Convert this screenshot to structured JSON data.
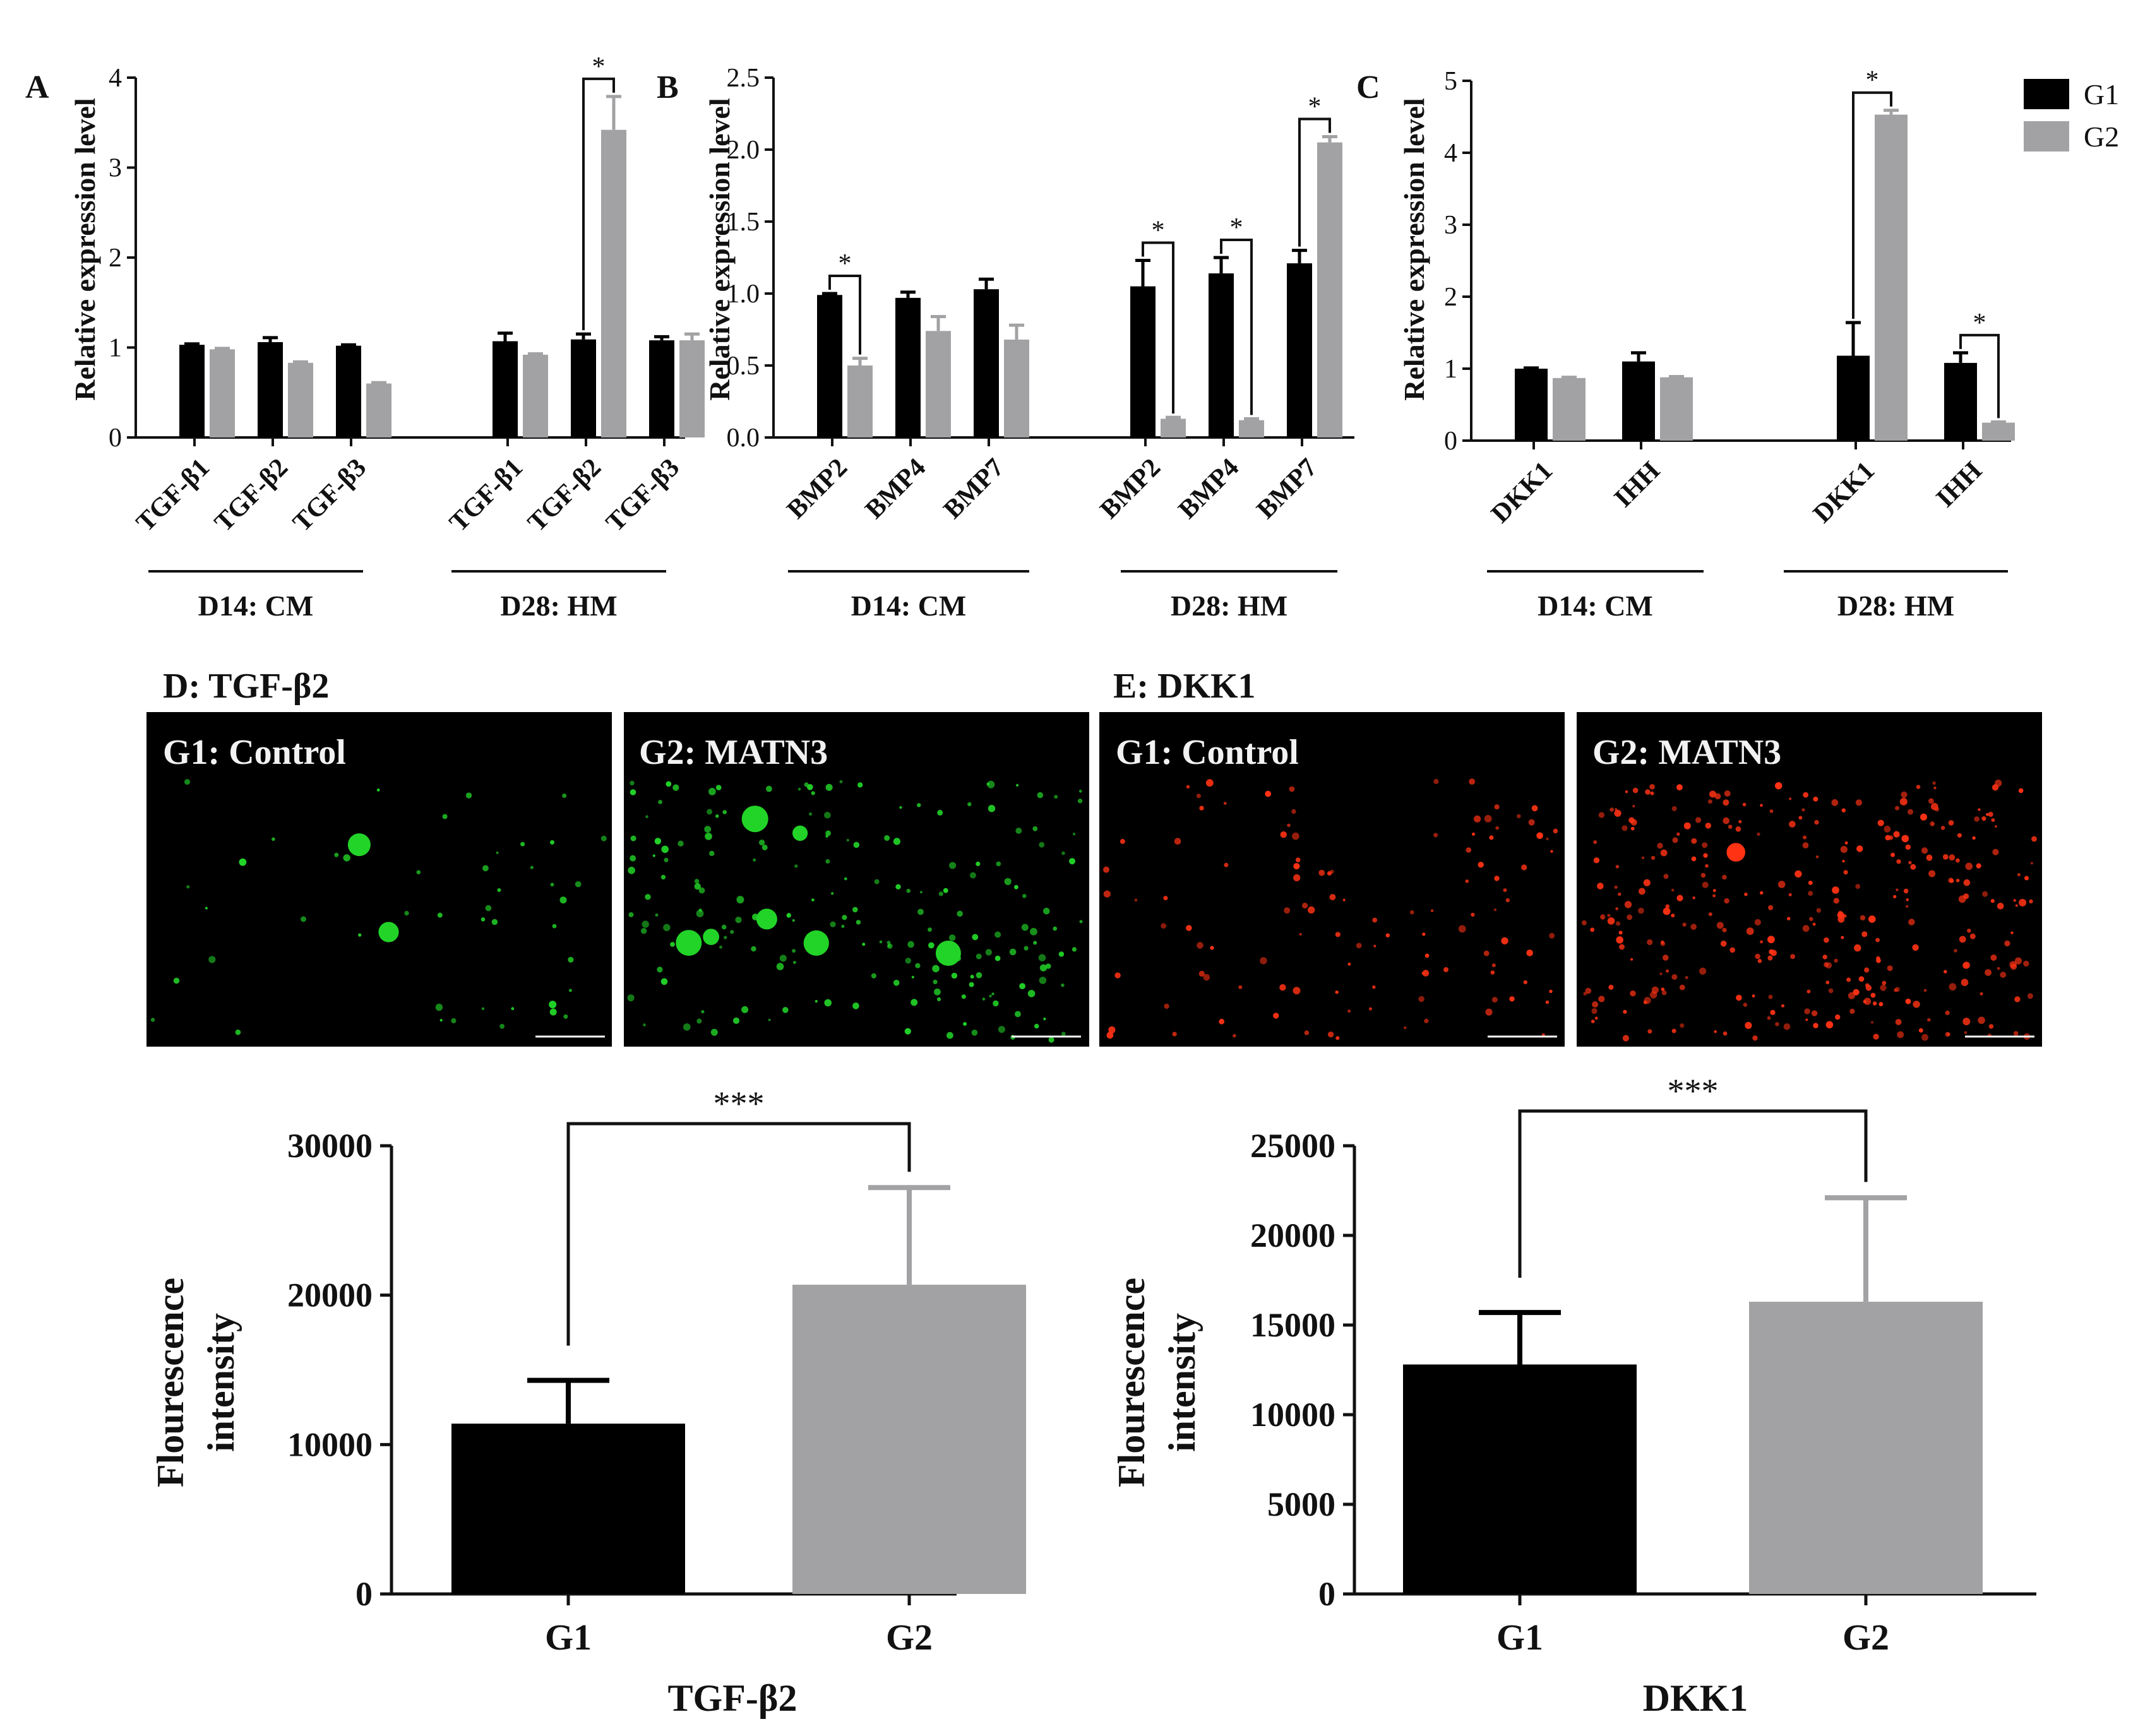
{
  "colors": {
    "G1": "#000000",
    "G2": "#a2a2a4",
    "axis": "#111111",
    "green_cells": "#22d428",
    "red_cells": "#ff3214"
  },
  "legend": {
    "items": [
      {
        "label": "G1",
        "color": "#000000"
      },
      {
        "label": "G2",
        "color": "#a2a2a4"
      }
    ],
    "placement": "top-right"
  },
  "chart_data": [
    {
      "panel": "A",
      "type": "bar",
      "ylabel": "Relative expression level",
      "ylim": [
        0,
        4
      ],
      "yticks": [
        "0",
        "1",
        "2",
        "3",
        "4"
      ],
      "categories": [
        "TGF-β1",
        "TGF-β2",
        "TGF-β3",
        "TGF-β1",
        "TGF-β2",
        "TGF-β3"
      ],
      "groups": [
        {
          "label": "D14: CM",
          "from": 0,
          "to": 2
        },
        {
          "label": "D28: HM",
          "from": 3,
          "to": 5
        }
      ],
      "series": [
        {
          "name": "G1",
          "values": [
            1.03,
            1.06,
            1.02,
            1.07,
            1.09,
            1.08
          ],
          "errors": [
            0.01,
            0.05,
            0.01,
            0.09,
            0.06,
            0.04
          ]
        },
        {
          "name": "G2",
          "values": [
            0.98,
            0.83,
            0.6,
            0.92,
            3.42,
            1.08
          ],
          "errors": [
            0.01,
            0.01,
            0.01,
            0.01,
            0.37,
            0.07
          ]
        }
      ],
      "significance": [
        {
          "category": 4,
          "label": "*"
        }
      ]
    },
    {
      "panel": "B",
      "type": "bar",
      "ylabel": "Relative expression level",
      "ylim": [
        0,
        2.5
      ],
      "yticks": [
        "0.0",
        "0.5",
        "1.0",
        "1.5",
        "2.0",
        "2.5"
      ],
      "categories": [
        "BMP2",
        "BMP4",
        "BMP7",
        "BMP2",
        "BMP4",
        "BMP7"
      ],
      "groups": [
        {
          "label": "D14: CM",
          "from": 0,
          "to": 2
        },
        {
          "label": "D28: HM",
          "from": 3,
          "to": 5
        }
      ],
      "series": [
        {
          "name": "G1",
          "values": [
            0.99,
            0.97,
            1.03,
            1.05,
            1.14,
            1.21
          ],
          "errors": [
            0.01,
            0.04,
            0.07,
            0.18,
            0.11,
            0.09
          ]
        },
        {
          "name": "G2",
          "values": [
            0.5,
            0.74,
            0.68,
            0.13,
            0.12,
            2.05
          ],
          "errors": [
            0.05,
            0.1,
            0.1,
            0.01,
            0.01,
            0.04
          ]
        }
      ],
      "significance": [
        {
          "category": 0,
          "label": "*"
        },
        {
          "category": 3,
          "label": "*"
        },
        {
          "category": 4,
          "label": "*"
        },
        {
          "category": 5,
          "label": "*"
        }
      ]
    },
    {
      "panel": "C",
      "type": "bar",
      "ylabel": "Relative expression level",
      "ylim": [
        0,
        5
      ],
      "yticks": [
        "0",
        "1",
        "2",
        "3",
        "4",
        "5"
      ],
      "categories": [
        "DKK1",
        "IHH",
        "DKK1",
        "IHH"
      ],
      "groups": [
        {
          "label": "D14: CM",
          "from": 0,
          "to": 1
        },
        {
          "label": "D28: HM",
          "from": 2,
          "to": 3
        }
      ],
      "series": [
        {
          "name": "G1",
          "values": [
            1.0,
            1.1,
            1.18,
            1.08
          ],
          "errors": [
            0.01,
            0.12,
            0.46,
            0.14
          ]
        },
        {
          "name": "G2",
          "values": [
            0.87,
            0.88,
            4.53,
            0.25
          ],
          "errors": [
            0.01,
            0.01,
            0.06,
            0.01
          ]
        }
      ],
      "significance": [
        {
          "category": 2,
          "label": "*"
        },
        {
          "category": 3,
          "label": "*"
        }
      ]
    },
    {
      "panel": "D",
      "type": "bar",
      "xlabel": "TGF-β2",
      "ylabel": "Flourescence intensity",
      "ylim": [
        0,
        30000
      ],
      "yticks": [
        "0",
        "10000",
        "20000",
        "30000"
      ],
      "categories": [
        "G1",
        "G2"
      ],
      "values": [
        11400,
        20700
      ],
      "errors": [
        2900,
        6500
      ],
      "significance": "***"
    },
    {
      "panel": "E",
      "type": "bar",
      "xlabel": "DKK1",
      "ylabel": "Flourescence intensity",
      "ylim": [
        0,
        25000
      ],
      "yticks": [
        "0",
        "5000",
        "10000",
        "15000",
        "20000",
        "25000"
      ],
      "categories": [
        "G1",
        "G2"
      ],
      "values": [
        12800,
        16300
      ],
      "errors": [
        2900,
        5800
      ],
      "significance": "***"
    }
  ],
  "micrographs": {
    "D": {
      "title": "D: TGF-β2",
      "panels": [
        {
          "label": "G1: Control",
          "stain": "green"
        },
        {
          "label": "G2: MATN3",
          "stain": "green"
        }
      ]
    },
    "E": {
      "title": "E: DKK1",
      "panels": [
        {
          "label": "G1: Control",
          "stain": "red"
        },
        {
          "label": "G2: MATN3",
          "stain": "red"
        }
      ]
    }
  }
}
